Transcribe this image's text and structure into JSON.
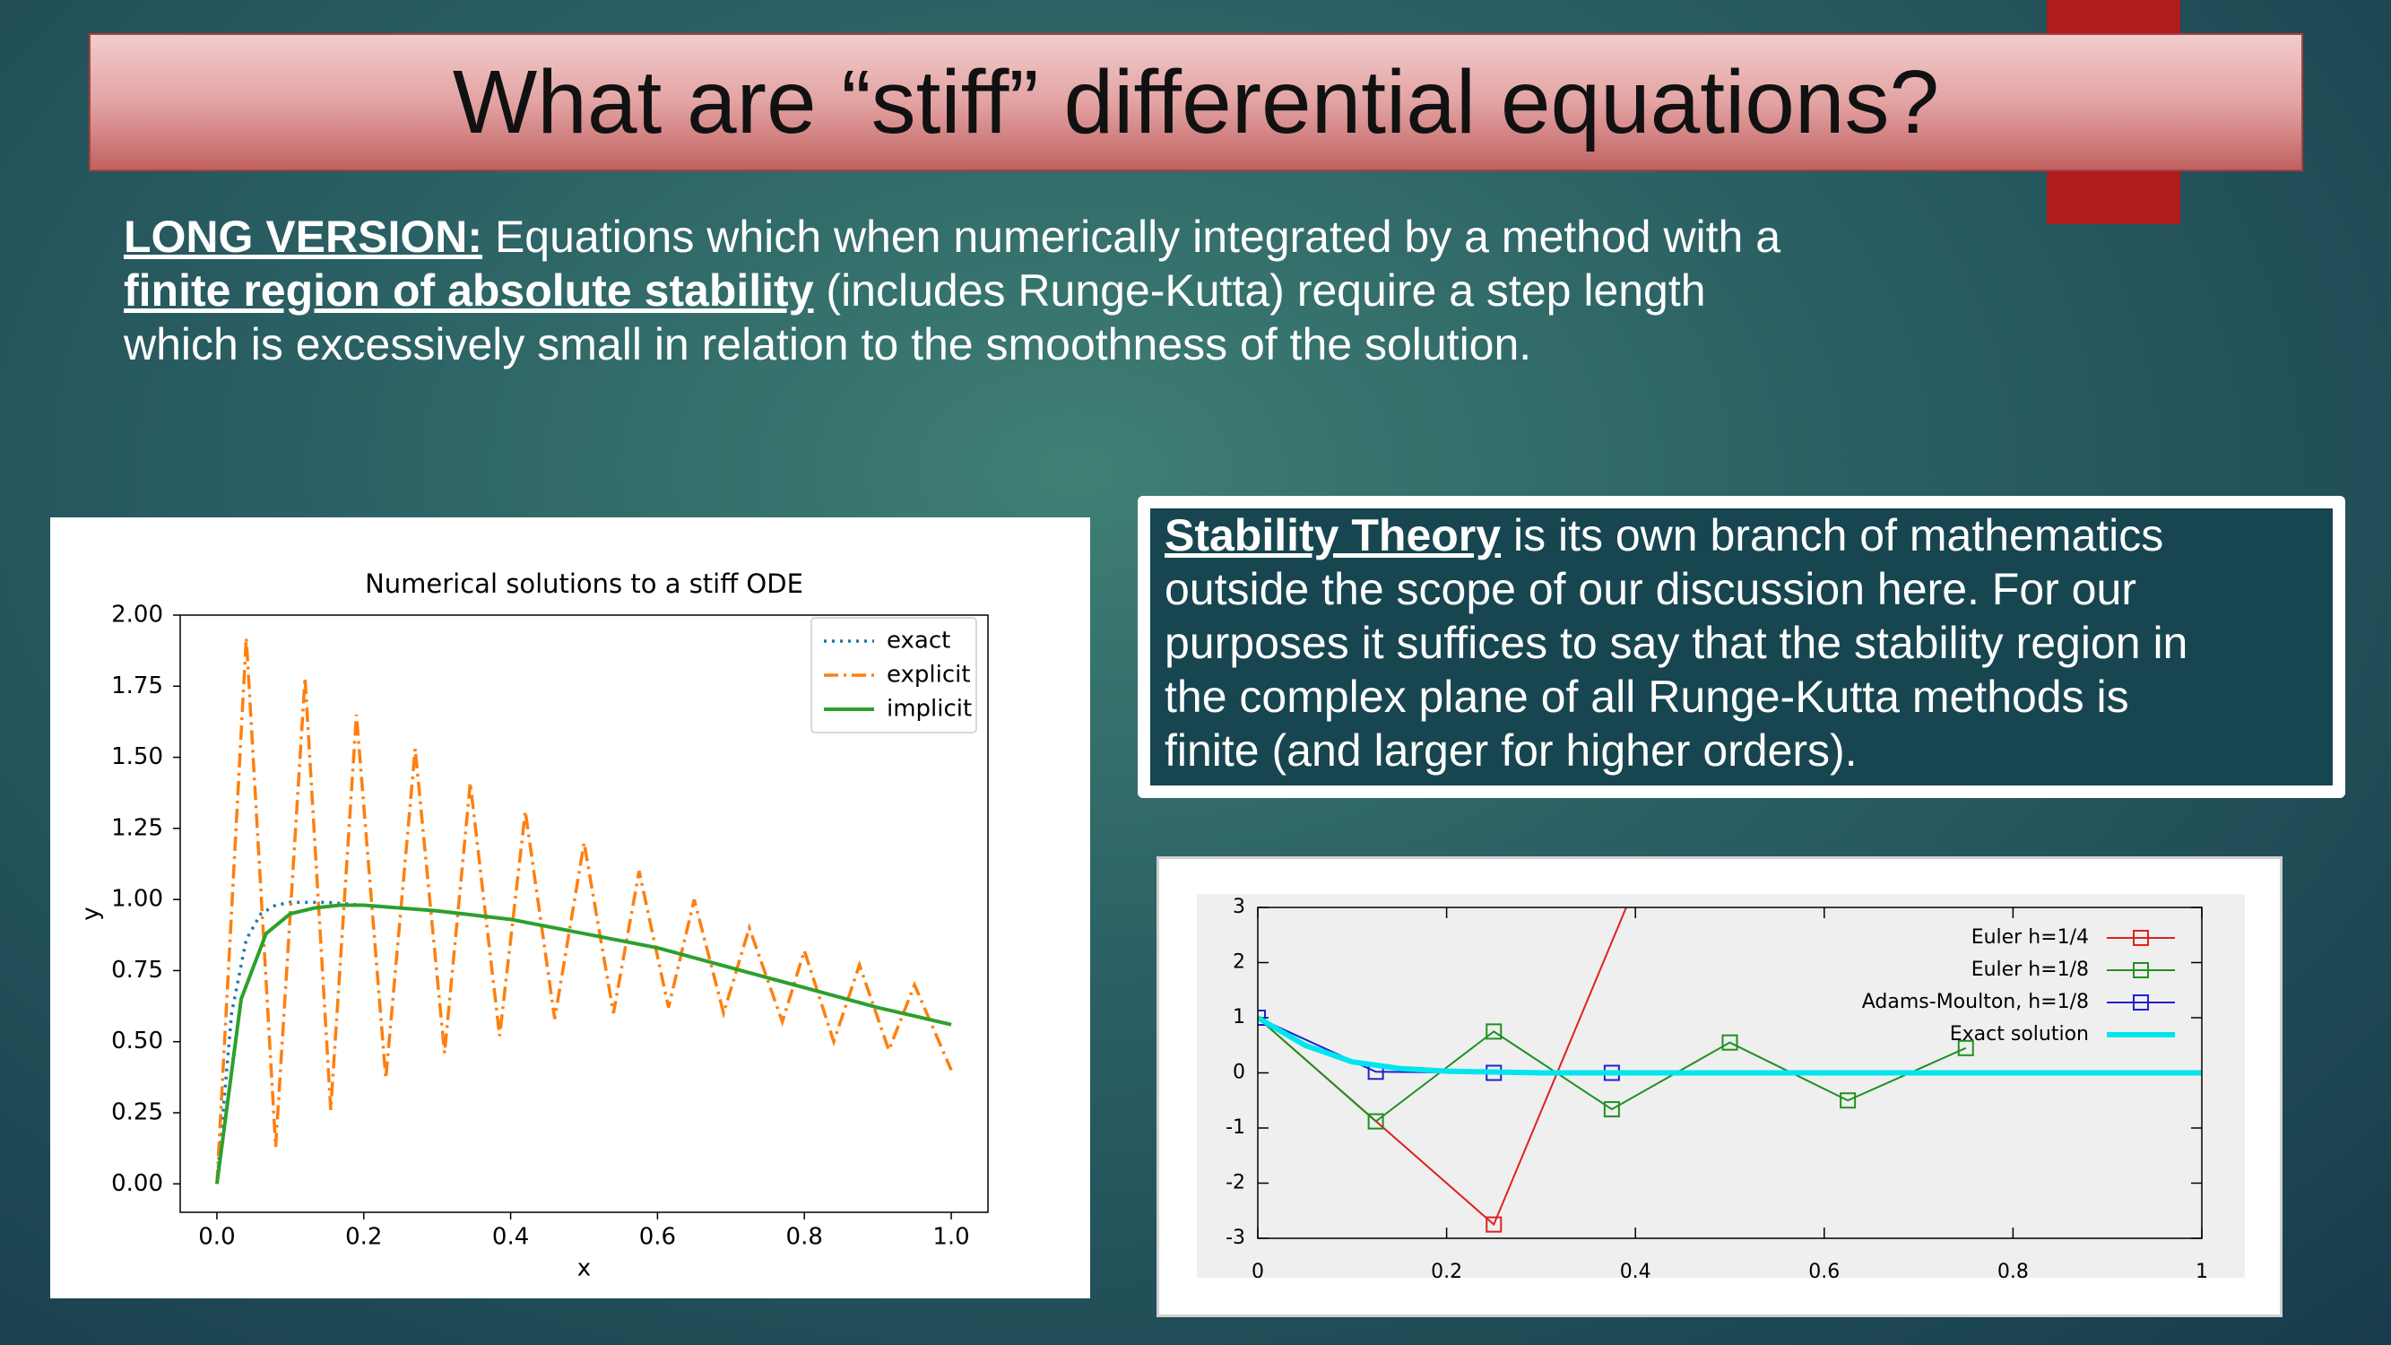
{
  "title": "What are “stiff” differential equations?",
  "long_version": {
    "label": "LONG VERSION:",
    "line1": "Equations which when numerically integrated by a method with a",
    "term": "finite region of absolute stability",
    "line2": "(includes Runge-Kutta) require a step length",
    "line3": "which is excessively small in relation to the smoothness of the solution."
  },
  "stability": {
    "term": "Stability Theory",
    "lines": [
      "is its own branch of mathematics",
      "outside the scope of our discussion here. For our",
      "purposes it suffices to say that the stability region in",
      "the complex plane of all Runge-Kutta methods is",
      "finite (and larger for higher orders)."
    ]
  },
  "chart_data": [
    {
      "type": "line",
      "title": "Numerical solutions to a stiff ODE",
      "xlabel": "x",
      "ylabel": "y",
      "xlim": [
        -0.05,
        1.05
      ],
      "ylim": [
        -0.1,
        2.0
      ],
      "xticks": [
        {
          "value": 0,
          "label": "0.0"
        },
        {
          "value": 0.2,
          "label": "0.2"
        },
        {
          "value": 0.4,
          "label": "0.4"
        },
        {
          "value": 0.6,
          "label": "0.6"
        },
        {
          "value": 0.8,
          "label": "0.8"
        },
        {
          "value": 1,
          "label": "1.0"
        }
      ],
      "yticks": [
        {
          "value": 0,
          "label": "0.00"
        },
        {
          "value": 0.25,
          "label": "0.25"
        },
        {
          "value": 0.5,
          "label": "0.50"
        },
        {
          "value": 0.75,
          "label": "0.75"
        },
        {
          "value": 1,
          "label": "1.00"
        },
        {
          "value": 1.25,
          "label": "1.25"
        },
        {
          "value": 1.5,
          "label": "1.50"
        },
        {
          "value": 1.75,
          "label": "1.75"
        },
        {
          "value": 2,
          "label": "2.00"
        }
      ],
      "grid": false,
      "legend": "upper right",
      "series": [
        {
          "name": "exact",
          "color": "#1f77b4",
          "linestyle": "dotted",
          "x": [
            0,
            0.02,
            0.04,
            0.06,
            0.08,
            0.1,
            0.15,
            0.2,
            0.3,
            0.4,
            0.5,
            0.6,
            0.7,
            0.8,
            0.9,
            1.0
          ],
          "values": [
            0,
            0.6,
            0.86,
            0.95,
            0.98,
            0.99,
            0.99,
            0.98,
            0.96,
            0.93,
            0.88,
            0.83,
            0.76,
            0.69,
            0.62,
            0.56
          ]
        },
        {
          "name": "explicit",
          "color": "#ff7f0e",
          "linestyle": "dashdot",
          "x": [
            0,
            0.04,
            0.08,
            0.12,
            0.155,
            0.19,
            0.23,
            0.27,
            0.31,
            0.345,
            0.385,
            0.42,
            0.46,
            0.5,
            0.54,
            0.575,
            0.615,
            0.65,
            0.69,
            0.725,
            0.77,
            0.8,
            0.84,
            0.875,
            0.915,
            0.95,
            1.0
          ],
          "values": [
            0,
            1.92,
            0.13,
            1.78,
            0.26,
            1.65,
            0.37,
            1.53,
            0.46,
            1.41,
            0.52,
            1.31,
            0.58,
            1.2,
            0.6,
            1.1,
            0.62,
            1.0,
            0.6,
            0.9,
            0.57,
            0.82,
            0.5,
            0.77,
            0.47,
            0.7,
            0.4
          ]
        },
        {
          "name": "implicit",
          "color": "#2ca02c",
          "linestyle": "solid",
          "x": [
            0,
            0.033,
            0.067,
            0.1,
            0.133,
            0.167,
            0.2,
            0.3,
            0.4,
            0.5,
            0.6,
            0.7,
            0.8,
            0.9,
            1.0
          ],
          "values": [
            0,
            0.65,
            0.88,
            0.95,
            0.97,
            0.98,
            0.98,
            0.96,
            0.93,
            0.88,
            0.83,
            0.76,
            0.69,
            0.62,
            0.56
          ]
        }
      ]
    },
    {
      "type": "line",
      "xlim": [
        0,
        1
      ],
      "ylim": [
        -3,
        3
      ],
      "xticks": [
        0,
        0.2,
        0.4,
        0.6,
        0.8,
        1
      ],
      "yticks": [
        -3,
        -2,
        -1,
        0,
        1,
        2,
        3
      ],
      "grid": false,
      "legend": "upper right",
      "series": [
        {
          "name": "Euler h=1/4",
          "color": "#e02020",
          "linestyle": "solid",
          "marker": "square",
          "x": [
            0,
            0.25,
            0.5
          ],
          "values": [
            1,
            -2.75,
            7.5
          ]
        },
        {
          "name": "Euler h=1/8",
          "color": "#209020",
          "linestyle": "solid",
          "marker": "square",
          "x": [
            0,
            0.125,
            0.25,
            0.375,
            0.5,
            0.625,
            0.75
          ],
          "values": [
            1,
            -0.88,
            0.75,
            -0.66,
            0.55,
            -0.5,
            0.45
          ]
        },
        {
          "name": "Adams-Moulton, h=1/8",
          "color": "#2020d0",
          "linestyle": "solid",
          "marker": "square",
          "x": [
            0,
            0.125,
            0.25,
            0.375
          ],
          "values": [
            1,
            0.02,
            0,
            0
          ]
        },
        {
          "name": "Exact solution",
          "color": "#00e5ee",
          "linestyle": "thick",
          "x": [
            0,
            0.05,
            0.1,
            0.15,
            0.2,
            0.3,
            0.4,
            0.5,
            0.6,
            0.7,
            0.8,
            0.9,
            1
          ],
          "values": [
            1,
            0.5,
            0.2,
            0.08,
            0.03,
            0,
            0,
            0,
            0,
            0,
            0,
            0,
            0
          ]
        }
      ]
    }
  ]
}
